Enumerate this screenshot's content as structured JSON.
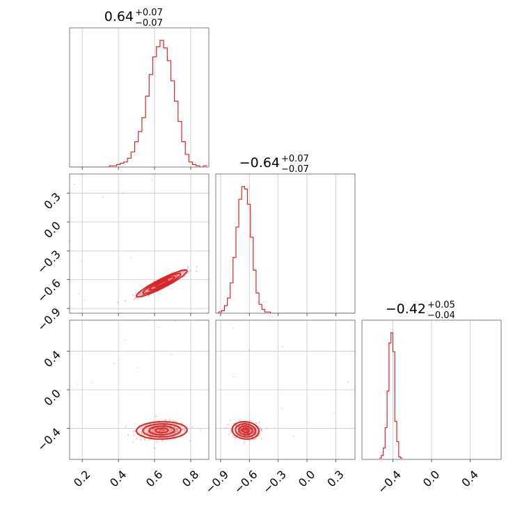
{
  "chart_data": {
    "type": "corner",
    "color": "#d62728",
    "parameters": [
      {
        "id": "p1",
        "range": [
          0.13,
          0.9
        ],
        "ticks": [
          {
            "v": 0.2,
            "label": "0.2"
          },
          {
            "v": 0.4,
            "label": "0.4"
          },
          {
            "v": 0.6,
            "label": "0.6"
          },
          {
            "v": 0.8,
            "label": "0.8"
          }
        ],
        "summary": {
          "median": "0.64",
          "plus": "+0.07",
          "minus": "−0.07"
        },
        "hist_x": [
          0.13,
          0.15,
          0.17,
          0.19,
          0.21,
          0.23,
          0.25,
          0.27,
          0.29,
          0.31,
          0.33,
          0.35,
          0.37,
          0.39,
          0.41,
          0.43,
          0.45,
          0.47,
          0.49,
          0.51,
          0.53,
          0.55,
          0.57,
          0.59,
          0.61,
          0.63,
          0.65,
          0.67,
          0.69,
          0.71,
          0.73,
          0.75,
          0.77,
          0.79,
          0.81,
          0.83,
          0.85,
          0.87,
          0.89
        ],
        "hist_y": [
          0,
          0,
          0,
          0,
          0,
          0,
          0,
          0,
          0,
          0,
          0,
          0.01,
          0.01,
          0.02,
          0.03,
          0.04,
          0.07,
          0.12,
          0.2,
          0.28,
          0.39,
          0.56,
          0.73,
          0.87,
          0.95,
          1.0,
          0.94,
          0.84,
          0.68,
          0.52,
          0.36,
          0.2,
          0.1,
          0.04,
          0.02,
          0.01,
          0,
          0.01,
          0
        ]
      },
      {
        "id": "p2",
        "range": [
          -0.95,
          0.5
        ],
        "ticks": [
          {
            "v": -0.9,
            "label": "−0.9"
          },
          {
            "v": -0.6,
            "label": "−0.6"
          },
          {
            "v": -0.3,
            "label": "−0.3"
          },
          {
            "v": 0.0,
            "label": "0.0"
          },
          {
            "v": 0.3,
            "label": "0.3"
          }
        ],
        "summary": {
          "median": "−0.64",
          "plus": "+0.07",
          "minus": "−0.07"
        },
        "hist_x": [
          -0.95,
          -0.92,
          -0.89,
          -0.86,
          -0.83,
          -0.8,
          -0.77,
          -0.74,
          -0.71,
          -0.68,
          -0.65,
          -0.62,
          -0.59,
          -0.56,
          -0.53,
          -0.5,
          -0.47,
          -0.44,
          -0.41,
          -0.38,
          -0.35,
          -0.32,
          -0.29,
          -0.26,
          -0.23,
          -0.2,
          0.0,
          0.5
        ],
        "hist_y": [
          0,
          0.01,
          0.02,
          0.06,
          0.12,
          0.24,
          0.44,
          0.68,
          0.9,
          1.0,
          0.98,
          0.86,
          0.6,
          0.34,
          0.16,
          0.07,
          0.03,
          0.01,
          0.01,
          0,
          0,
          0,
          0,
          0,
          0,
          0,
          0,
          0
        ]
      },
      {
        "id": "p3",
        "range": [
          -0.72,
          0.72
        ],
        "ticks": [
          {
            "v": -0.4,
            "label": "−0.4"
          },
          {
            "v": 0.0,
            "label": "0.0"
          },
          {
            "v": 0.4,
            "label": "0.4"
          }
        ],
        "summary": {
          "median": "−0.42",
          "plus": "+0.05",
          "minus": "−0.04"
        },
        "hist_x": [
          -0.54,
          -0.52,
          -0.5,
          -0.48,
          -0.46,
          -0.44,
          -0.42,
          -0.4,
          -0.38,
          -0.36,
          -0.34,
          -0.32,
          -0.3
        ],
        "hist_y": [
          0.01,
          0.03,
          0.09,
          0.25,
          0.54,
          0.92,
          1.0,
          0.85,
          0.3,
          0.14,
          0.02,
          0.01,
          0
        ]
      }
    ],
    "pairs": [
      {
        "x_param": 0,
        "y_param": 1,
        "center": [
          0.64,
          -0.64
        ],
        "sigma": [
          0.07,
          0.07
        ],
        "correlation": 0.93,
        "levels": [
          0.5,
          1.0,
          1.5,
          2.0
        ]
      },
      {
        "x_param": 0,
        "y_param": 2,
        "center": [
          0.64,
          -0.42
        ],
        "sigma": [
          0.07,
          0.045
        ],
        "correlation": 0.05,
        "levels": [
          0.5,
          1.0,
          1.5,
          2.0
        ]
      },
      {
        "x_param": 1,
        "y_param": 2,
        "center": [
          -0.64,
          -0.42
        ],
        "sigma": [
          0.07,
          0.045
        ],
        "correlation": -0.1,
        "levels": [
          0.5,
          1.0,
          1.5,
          2.0
        ]
      }
    ]
  }
}
